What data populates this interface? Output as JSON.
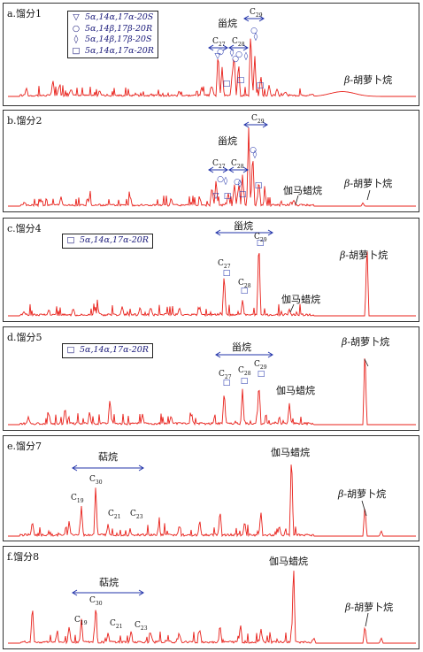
{
  "panels": [
    {
      "title": "a.馏分1",
      "legend": [
        "5α,14α,17α-20S",
        "5α,14β,17β-20R",
        "5α,14β,17β-20S",
        "5α,14α,17α-20R"
      ],
      "group_label": "甾烷",
      "c29": "C29",
      "c27": "C27",
      "c28": "C28",
      "carotane": "β-胡萝卜烷"
    },
    {
      "title": "b.馏分2",
      "group_label": "甾烷",
      "c29": "C29",
      "c27": "C27",
      "c28": "C28",
      "gammacerane": "伽马蜡烷",
      "carotane": "β-胡萝卜烷"
    },
    {
      "title": "c.馏分4",
      "legend": [
        "5α,14α,17α-20R"
      ],
      "group_label": "甾烷",
      "c27": "C27",
      "c28": "C28",
      "c29": "C29",
      "gammacerane": "伽马蜡烷",
      "carotane": "β-胡萝卜烷"
    },
    {
      "title": "d.馏分5",
      "legend": [
        "5α,14α,17α-20R"
      ],
      "group_label": "甾烷",
      "c27": "C27",
      "c28": "C28",
      "c29": "C29",
      "gammacerane": "伽马蜡烷",
      "carotane": "β-胡萝卜烷"
    },
    {
      "title": "e.馏分7",
      "group_label": "萜烷",
      "c30": "C30",
      "c19": "C19",
      "c21": "C21",
      "c23": "C23",
      "gammacerane": "伽马蜡烷",
      "carotane": "β-胡萝卜烷"
    },
    {
      "title": "f.馏分8",
      "group_label": "萜烷",
      "c30": "C30",
      "c19": "C19",
      "c21": "C21",
      "c23": "C23",
      "gammacerane": "伽马蜡烷",
      "carotane": "β-胡萝卜烷"
    }
  ],
  "colors": {
    "trace": "#e8201a",
    "annotation": "#2233aa",
    "frame": "#333333"
  },
  "chart_data": [
    {
      "type": "line",
      "title": "a.馏分1",
      "peaks": [
        {
          "x": 0.045,
          "h": 0.1
        },
        {
          "x": 0.11,
          "h": 0.2
        },
        {
          "x": 0.125,
          "h": 0.12
        },
        {
          "x": 0.155,
          "h": 0.1
        },
        {
          "x": 0.225,
          "h": 0.06
        },
        {
          "x": 0.42,
          "h": 0.06
        },
        {
          "x": 0.475,
          "h": 0.1
        },
        {
          "x": 0.5,
          "h": 0.12
        },
        {
          "x": 0.515,
          "h": 0.55
        },
        {
          "x": 0.525,
          "h": 0.36
        },
        {
          "x": 0.55,
          "h": 0.3
        },
        {
          "x": 0.555,
          "h": 0.44
        },
        {
          "x": 0.565,
          "h": 0.38
        },
        {
          "x": 0.595,
          "h": 0.82
        },
        {
          "x": 0.605,
          "h": 0.5
        },
        {
          "x": 0.62,
          "h": 0.24
        },
        {
          "x": 0.64,
          "h": 0.13
        },
        {
          "x": 0.66,
          "h": 0.1
        },
        {
          "x": 0.68,
          "h": 0.06
        }
      ],
      "hump": {
        "x": 0.82,
        "h": 0.06,
        "w": 0.06
      }
    },
    {
      "type": "line",
      "title": "b.馏分2",
      "peaks": [
        {
          "x": 0.04,
          "h": 0.05
        },
        {
          "x": 0.08,
          "h": 0.08
        },
        {
          "x": 0.13,
          "h": 0.12
        },
        {
          "x": 0.2,
          "h": 0.1
        },
        {
          "x": 0.3,
          "h": 0.12
        },
        {
          "x": 0.4,
          "h": 0.08
        },
        {
          "x": 0.5,
          "h": 0.24
        },
        {
          "x": 0.51,
          "h": 0.32
        },
        {
          "x": 0.54,
          "h": 0.16
        },
        {
          "x": 0.555,
          "h": 0.26
        },
        {
          "x": 0.565,
          "h": 0.22
        },
        {
          "x": 0.575,
          "h": 0.38
        },
        {
          "x": 0.59,
          "h": 0.95
        },
        {
          "x": 0.6,
          "h": 0.66
        },
        {
          "x": 0.615,
          "h": 0.32
        },
        {
          "x": 0.63,
          "h": 0.16
        },
        {
          "x": 0.7,
          "h": 0.06
        },
        {
          "x": 0.87,
          "h": 0.04
        }
      ]
    },
    {
      "type": "line",
      "title": "c.馏分4",
      "peaks": [
        {
          "x": 0.04,
          "h": 0.04
        },
        {
          "x": 0.1,
          "h": 0.06
        },
        {
          "x": 0.16,
          "h": 0.08
        },
        {
          "x": 0.22,
          "h": 0.07
        },
        {
          "x": 0.28,
          "h": 0.1
        },
        {
          "x": 0.35,
          "h": 0.09
        },
        {
          "x": 0.42,
          "h": 0.08
        },
        {
          "x": 0.47,
          "h": 0.1
        },
        {
          "x": 0.53,
          "h": 0.46
        },
        {
          "x": 0.575,
          "h": 0.18
        },
        {
          "x": 0.615,
          "h": 0.88
        },
        {
          "x": 0.69,
          "h": 0.06
        },
        {
          "x": 0.88,
          "h": 0.85
        }
      ]
    },
    {
      "type": "line",
      "title": "d.馏分5",
      "peaks": [
        {
          "x": 0.05,
          "h": 0.08
        },
        {
          "x": 0.1,
          "h": 0.12
        },
        {
          "x": 0.14,
          "h": 0.18
        },
        {
          "x": 0.2,
          "h": 0.14
        },
        {
          "x": 0.25,
          "h": 0.3
        },
        {
          "x": 0.33,
          "h": 0.12
        },
        {
          "x": 0.4,
          "h": 0.1
        },
        {
          "x": 0.45,
          "h": 0.12
        },
        {
          "x": 0.53,
          "h": 0.38
        },
        {
          "x": 0.575,
          "h": 0.4
        },
        {
          "x": 0.615,
          "h": 0.48
        },
        {
          "x": 0.69,
          "h": 0.24
        },
        {
          "x": 0.875,
          "h": 0.92
        }
      ]
    },
    {
      "type": "line",
      "title": "e.馏分7",
      "peaks": [
        {
          "x": 0.06,
          "h": 0.15
        },
        {
          "x": 0.15,
          "h": 0.15
        },
        {
          "x": 0.18,
          "h": 0.32
        },
        {
          "x": 0.215,
          "h": 0.55
        },
        {
          "x": 0.245,
          "h": 0.12
        },
        {
          "x": 0.3,
          "h": 0.05
        },
        {
          "x": 0.37,
          "h": 0.1
        },
        {
          "x": 0.42,
          "h": 0.12
        },
        {
          "x": 0.47,
          "h": 0.16
        },
        {
          "x": 0.52,
          "h": 0.28
        },
        {
          "x": 0.58,
          "h": 0.16
        },
        {
          "x": 0.62,
          "h": 0.26
        },
        {
          "x": 0.665,
          "h": 0.1
        },
        {
          "x": 0.695,
          "h": 0.95
        },
        {
          "x": 0.875,
          "h": 0.36
        },
        {
          "x": 0.915,
          "h": 0.06
        }
      ]
    },
    {
      "type": "line",
      "title": "f.馏分8",
      "peaks": [
        {
          "x": 0.06,
          "h": 0.42
        },
        {
          "x": 0.12,
          "h": 0.1
        },
        {
          "x": 0.15,
          "h": 0.18
        },
        {
          "x": 0.18,
          "h": 0.25
        },
        {
          "x": 0.215,
          "h": 0.38
        },
        {
          "x": 0.245,
          "h": 0.1
        },
        {
          "x": 0.3,
          "h": 0.06
        },
        {
          "x": 0.35,
          "h": 0.12
        },
        {
          "x": 0.42,
          "h": 0.1
        },
        {
          "x": 0.47,
          "h": 0.16
        },
        {
          "x": 0.52,
          "h": 0.18
        },
        {
          "x": 0.57,
          "h": 0.22
        },
        {
          "x": 0.62,
          "h": 0.16
        },
        {
          "x": 0.7,
          "h": 0.88
        },
        {
          "x": 0.75,
          "h": 0.06
        },
        {
          "x": 0.875,
          "h": 0.2
        },
        {
          "x": 0.915,
          "h": 0.06
        }
      ]
    }
  ]
}
